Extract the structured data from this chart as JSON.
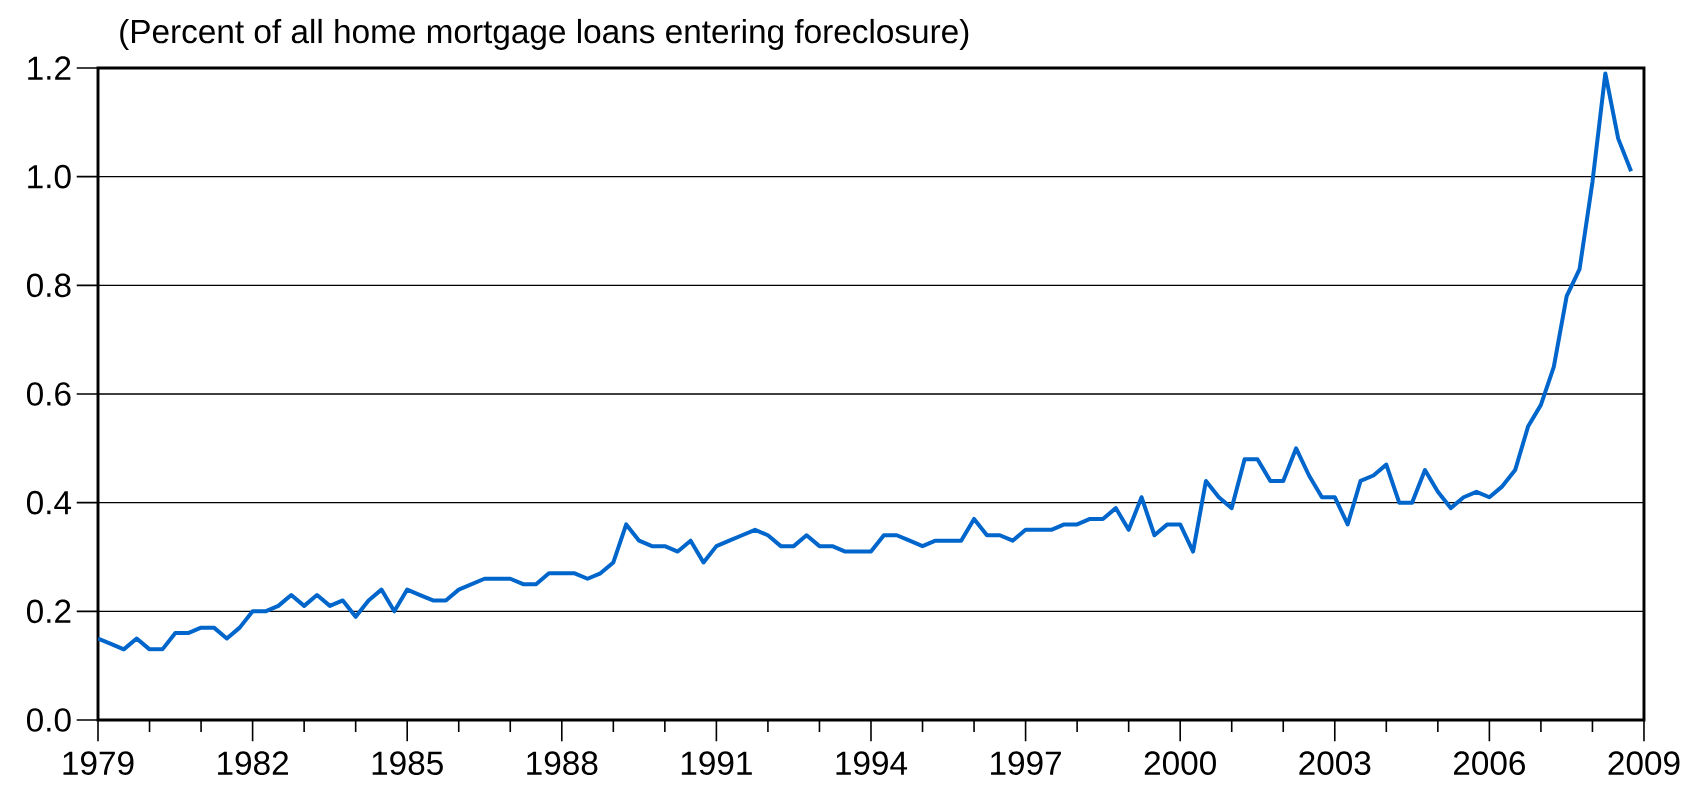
{
  "chart_data": {
    "type": "line",
    "title": "(Percent of all home mortgage loans entering foreclosure)",
    "x": [
      1979.0,
      1979.25,
      1979.5,
      1979.75,
      1980.0,
      1980.25,
      1980.5,
      1980.75,
      1981.0,
      1981.25,
      1981.5,
      1981.75,
      1982.0,
      1982.25,
      1982.5,
      1982.75,
      1983.0,
      1983.25,
      1983.5,
      1983.75,
      1984.0,
      1984.25,
      1984.5,
      1984.75,
      1985.0,
      1985.25,
      1985.5,
      1985.75,
      1986.0,
      1986.25,
      1986.5,
      1986.75,
      1987.0,
      1987.25,
      1987.5,
      1987.75,
      1988.0,
      1988.25,
      1988.5,
      1988.75,
      1989.0,
      1989.25,
      1989.5,
      1989.75,
      1990.0,
      1990.25,
      1990.5,
      1990.75,
      1991.0,
      1991.25,
      1991.5,
      1991.75,
      1992.0,
      1992.25,
      1992.5,
      1992.75,
      1993.0,
      1993.25,
      1993.5,
      1993.75,
      1994.0,
      1994.25,
      1994.5,
      1994.75,
      1995.0,
      1995.25,
      1995.5,
      1995.75,
      1996.0,
      1996.25,
      1996.5,
      1996.75,
      1997.0,
      1997.25,
      1997.5,
      1997.75,
      1998.0,
      1998.25,
      1998.5,
      1998.75,
      1999.0,
      1999.25,
      1999.5,
      1999.75,
      2000.0,
      2000.25,
      2000.5,
      2000.75,
      2001.0,
      2001.25,
      2001.5,
      2001.75,
      2002.0,
      2002.25,
      2002.5,
      2002.75,
      2003.0,
      2003.25,
      2003.5,
      2003.75,
      2004.0,
      2004.25,
      2004.5,
      2004.75,
      2005.0,
      2005.25,
      2005.5,
      2005.75,
      2006.0,
      2006.25,
      2006.5,
      2006.75,
      2007.0,
      2007.25,
      2007.5,
      2007.75,
      2008.0,
      2008.25,
      2008.5,
      2008.75
    ],
    "series": [
      {
        "color": "#0066cc",
        "values": [
          0.15,
          0.14,
          0.13,
          0.15,
          0.13,
          0.13,
          0.16,
          0.16,
          0.17,
          0.17,
          0.15,
          0.17,
          0.2,
          0.2,
          0.21,
          0.23,
          0.21,
          0.23,
          0.21,
          0.22,
          0.19,
          0.22,
          0.24,
          0.2,
          0.24,
          0.23,
          0.22,
          0.22,
          0.24,
          0.25,
          0.26,
          0.26,
          0.26,
          0.25,
          0.25,
          0.27,
          0.27,
          0.27,
          0.26,
          0.27,
          0.29,
          0.36,
          0.33,
          0.32,
          0.32,
          0.31,
          0.33,
          0.29,
          0.32,
          0.33,
          0.34,
          0.35,
          0.34,
          0.32,
          0.32,
          0.34,
          0.32,
          0.32,
          0.31,
          0.31,
          0.31,
          0.34,
          0.34,
          0.33,
          0.32,
          0.33,
          0.33,
          0.33,
          0.37,
          0.34,
          0.34,
          0.33,
          0.35,
          0.35,
          0.35,
          0.36,
          0.36,
          0.37,
          0.37,
          0.39,
          0.35,
          0.41,
          0.34,
          0.36,
          0.36,
          0.31,
          0.44,
          0.41,
          0.39,
          0.48,
          0.48,
          0.44,
          0.44,
          0.5,
          0.45,
          0.41,
          0.41,
          0.36,
          0.44,
          0.45,
          0.47,
          0.4,
          0.4,
          0.46,
          0.42,
          0.39,
          0.41,
          0.42,
          0.41,
          0.43,
          0.46,
          0.54,
          0.58,
          0.65,
          0.78,
          0.83,
          0.99,
          1.19,
          1.07,
          1.01
        ]
      }
    ],
    "xlim": [
      1979,
      2009
    ],
    "xticks": [
      1979,
      {
        "value": 1980,
        "label": null
      },
      {
        "value": 1981,
        "label": null
      },
      1982,
      {
        "value": 1983,
        "label": null
      },
      {
        "value": 1984,
        "label": null
      },
      1985,
      {
        "value": 1986,
        "label": null
      },
      {
        "value": 1987,
        "label": null
      },
      1988,
      {
        "value": 1989,
        "label": null
      },
      {
        "value": 1990,
        "label": null
      },
      1991,
      {
        "value": 1992,
        "label": null
      },
      {
        "value": 1993,
        "label": null
      },
      1994,
      {
        "value": 1995,
        "label": null
      },
      {
        "value": 1996,
        "label": null
      },
      1997,
      {
        "value": 1998,
        "label": null
      },
      {
        "value": 1999,
        "label": null
      },
      2000,
      {
        "value": 2001,
        "label": null
      },
      {
        "value": 2002,
        "label": null
      },
      2003,
      {
        "value": 2004,
        "label": null
      },
      {
        "value": 2005,
        "label": null
      },
      2006,
      {
        "value": 2007,
        "label": null
      },
      {
        "value": 2008,
        "label": null
      },
      2009
    ],
    "ylim": [
      0,
      1.2
    ],
    "yticks": [
      {
        "value": 0,
        "label": "0.0"
      },
      {
        "value": 0.2,
        "label": "0.2"
      },
      {
        "value": 0.4,
        "label": "0.4"
      },
      {
        "value": 0.6,
        "label": "0.6"
      },
      {
        "value": 0.8,
        "label": "0.8"
      },
      {
        "value": 1.0,
        "label": "1.0"
      },
      {
        "value": 1.2,
        "label": "1.2"
      }
    ],
    "grid": "y",
    "marker": "none",
    "line_style": "solid"
  }
}
